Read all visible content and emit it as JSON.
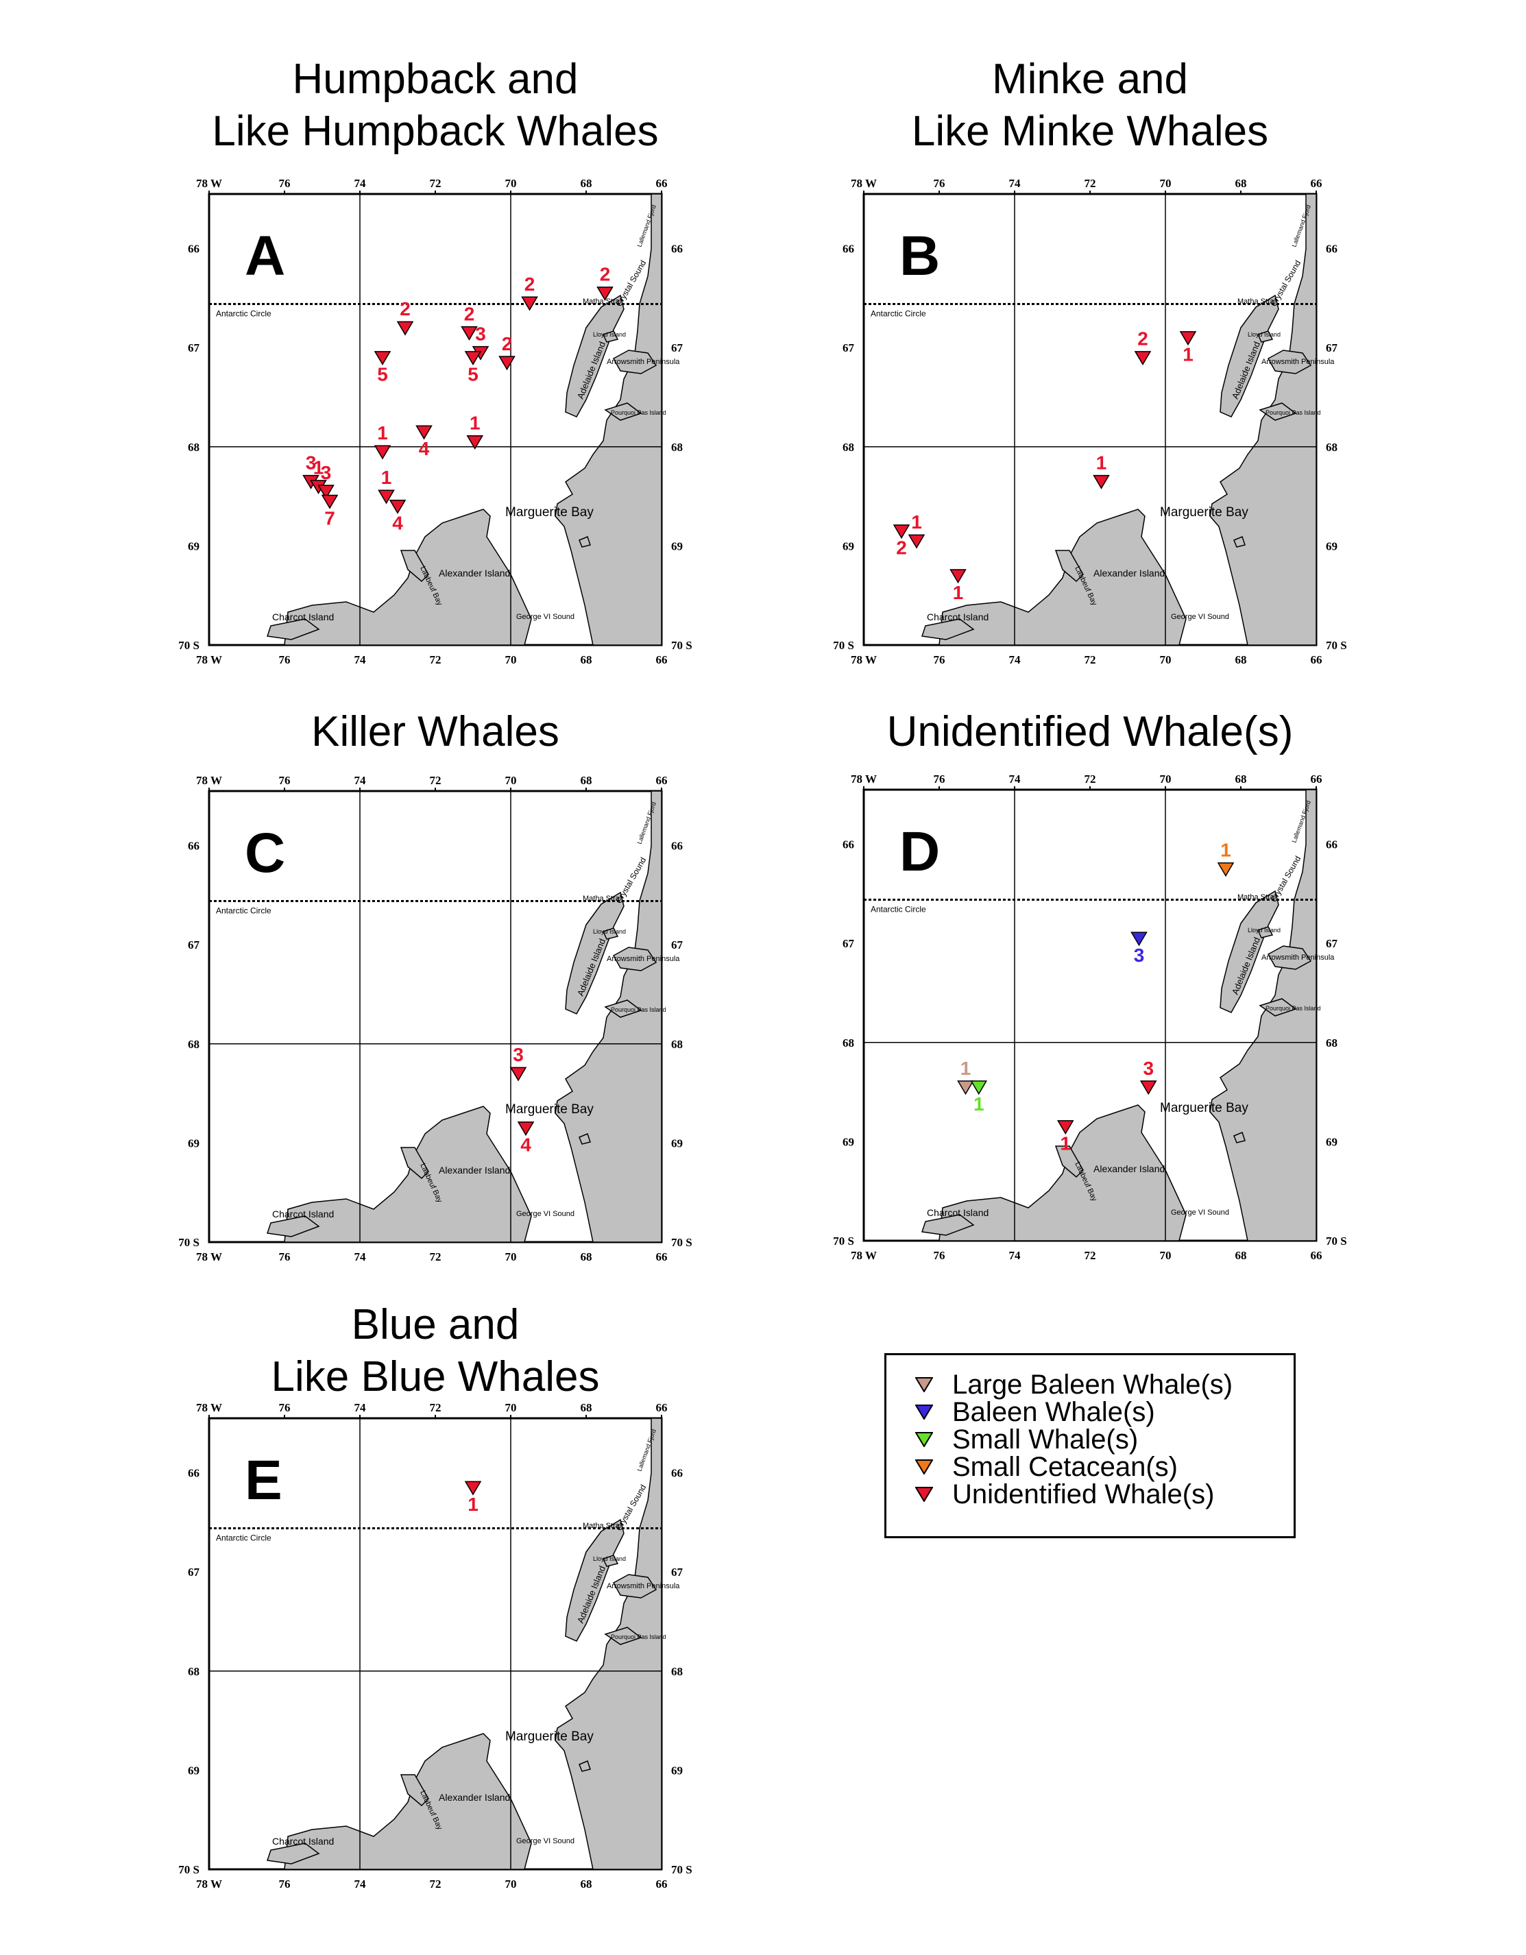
{
  "axis": {
    "lon_ticks": [
      "78 W",
      "76",
      "74",
      "72",
      "70",
      "68",
      "66"
    ],
    "lat_ticks_left": [
      "66",
      "67",
      "68",
      "69",
      "70 S"
    ],
    "lat_ticks_right": [
      "66",
      "67",
      "68",
      "69",
      "70 S"
    ]
  },
  "geo_labels": {
    "antarctic_circle": "Antarctic Circle",
    "marguerite_bay": "Marguerite Bay",
    "alexander_island": "Alexander Island",
    "charcot_island": "Charcot Island",
    "george_vi_sound": "George VI Sound",
    "laubeuf_bay": "Laubeuf Bay",
    "adelaide_island": "Adelaide Island",
    "matha_strait": "Matha Strait",
    "crystal_sound": "Crystal Sound",
    "lallemand_fjord": "Lallemand Fjord",
    "arrowsmith_peninsula": "Arrowsmith Peninsula",
    "lloyd_island": "Lloyd Island",
    "pourquoi_pas_island": "Pourquoi Pas Island"
  },
  "colors": {
    "land": "#c0c0c0",
    "label_red": "#e8142c",
    "unidentified": "#e8142c",
    "large_baleen": "#c89a8a",
    "baleen": "#3a28e0",
    "small_whale": "#66e02a",
    "small_cetacean": "#f07818"
  },
  "panels": [
    {
      "id": "A",
      "letter": "A",
      "title_lines": [
        "Humpback and",
        "Like Humpback Whales"
      ],
      "markers": [
        {
          "lon": 67.5,
          "lat": 66.45,
          "type": "unidentified",
          "label": "2"
        },
        {
          "lon": 69.5,
          "lat": 66.55,
          "type": "unidentified",
          "label": "2"
        },
        {
          "lon": 72.8,
          "lat": 66.8,
          "type": "unidentified",
          "label": "2"
        },
        {
          "lon": 73.4,
          "lat": 67.1,
          "type": "unidentified",
          "label": "5"
        },
        {
          "lon": 71.1,
          "lat": 66.85,
          "type": "unidentified",
          "label": "2"
        },
        {
          "lon": 70.8,
          "lat": 67.05,
          "type": "unidentified",
          "label": "3"
        },
        {
          "lon": 71.0,
          "lat": 67.1,
          "type": "unidentified",
          "label": "5"
        },
        {
          "lon": 70.1,
          "lat": 67.15,
          "type": "unidentified",
          "label": "2"
        },
        {
          "lon": 70.95,
          "lat": 67.95,
          "type": "unidentified",
          "label": "1"
        },
        {
          "lon": 72.3,
          "lat": 67.85,
          "type": "unidentified",
          "label": "4"
        },
        {
          "lon": 73.4,
          "lat": 68.05,
          "type": "unidentified",
          "label": "1"
        },
        {
          "lon": 75.3,
          "lat": 68.35,
          "type": "unidentified",
          "label": "3"
        },
        {
          "lon": 75.1,
          "lat": 68.4,
          "type": "unidentified",
          "label": "1"
        },
        {
          "lon": 74.9,
          "lat": 68.45,
          "type": "unidentified",
          "label": "3"
        },
        {
          "lon": 74.8,
          "lat": 68.55,
          "type": "unidentified",
          "label": "7"
        },
        {
          "lon": 73.3,
          "lat": 68.5,
          "type": "unidentified",
          "label": "1"
        },
        {
          "lon": 73.0,
          "lat": 68.6,
          "type": "unidentified",
          "label": "4"
        }
      ]
    },
    {
      "id": "B",
      "letter": "B",
      "title_lines": [
        "Minke and",
        "Like Minke Whales"
      ],
      "markers": [
        {
          "lon": 70.6,
          "lat": 67.1,
          "type": "unidentified",
          "label": "2"
        },
        {
          "lon": 69.4,
          "lat": 66.9,
          "type": "unidentified",
          "label": "1"
        },
        {
          "lon": 71.7,
          "lat": 68.35,
          "type": "unidentified",
          "label": "1"
        },
        {
          "lon": 77.0,
          "lat": 68.85,
          "type": "unidentified",
          "label": "2"
        },
        {
          "lon": 76.6,
          "lat": 68.95,
          "type": "unidentified",
          "label": "1"
        },
        {
          "lon": 75.5,
          "lat": 69.3,
          "type": "unidentified",
          "label": "1"
        }
      ]
    },
    {
      "id": "C",
      "letter": "C",
      "title_lines": [
        "Killer Whales"
      ],
      "markers": [
        {
          "lon": 69.8,
          "lat": 68.3,
          "type": "unidentified",
          "label": "3"
        },
        {
          "lon": 69.6,
          "lat": 68.85,
          "type": "unidentified",
          "label": "4"
        }
      ]
    },
    {
      "id": "D",
      "letter": "D",
      "title_lines": [
        "Unidentified Whale(s)"
      ],
      "markers": [
        {
          "lon": 68.4,
          "lat": 66.25,
          "type": "small_cetacean",
          "label": "1"
        },
        {
          "lon": 70.7,
          "lat": 66.95,
          "type": "baleen",
          "label": "3"
        },
        {
          "lon": 75.3,
          "lat": 68.45,
          "type": "large_baleen",
          "label": "1"
        },
        {
          "lon": 74.95,
          "lat": 68.45,
          "type": "small_whale",
          "label": "1"
        },
        {
          "lon": 70.45,
          "lat": 68.45,
          "type": "unidentified",
          "label": "3"
        },
        {
          "lon": 72.65,
          "lat": 68.85,
          "type": "unidentified",
          "label": "1"
        }
      ]
    },
    {
      "id": "E",
      "letter": "E",
      "title_lines": [
        "Blue and",
        "Like Blue Whales"
      ],
      "markers": [
        {
          "lon": 71.0,
          "lat": 66.15,
          "type": "unidentified",
          "label": "1"
        }
      ]
    }
  ],
  "legend": {
    "items": [
      {
        "type": "large_baleen",
        "label": "Large Baleen Whale(s)"
      },
      {
        "type": "baleen",
        "label": "Baleen Whale(s)"
      },
      {
        "type": "small_whale",
        "label": "Small Whale(s)"
      },
      {
        "type": "small_cetacean",
        "label": "Small Cetacean(s)"
      },
      {
        "type": "unidentified",
        "label": "Unidentified Whale(s)"
      }
    ]
  }
}
